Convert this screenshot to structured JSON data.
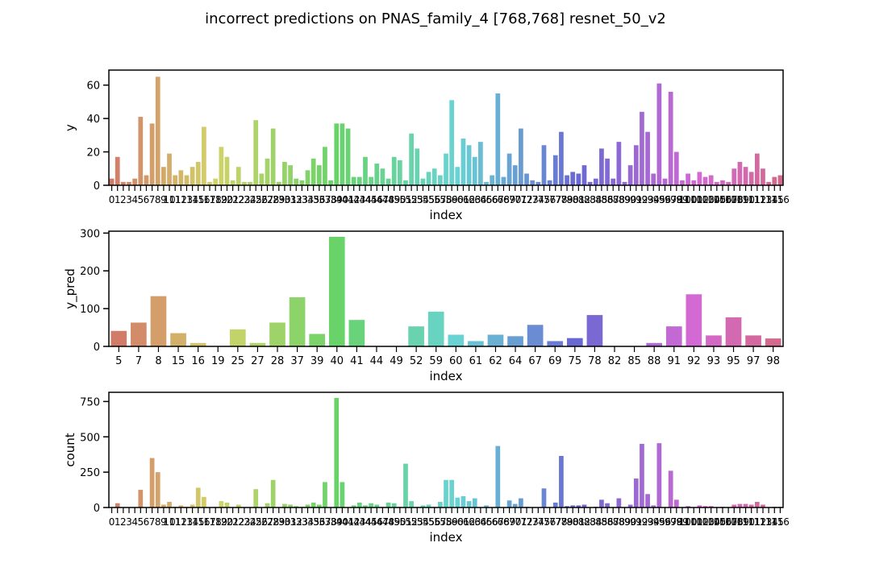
{
  "figure": {
    "title": "incorrect predictions on PNAS_family_4 [768,768] resnet_50_v2"
  },
  "chart_data": [
    {
      "type": "bar",
      "xlabel": "index",
      "ylabel": "y",
      "ylim": [
        0,
        69
      ],
      "yticks": [
        0,
        20,
        40,
        60
      ],
      "x": [
        0,
        1,
        2,
        3,
        4,
        5,
        6,
        7,
        8,
        9,
        10,
        11,
        12,
        13,
        14,
        15,
        16,
        17,
        18,
        19,
        20,
        21,
        22,
        23,
        24,
        25,
        26,
        27,
        28,
        29,
        30,
        31,
        32,
        33,
        34,
        35,
        36,
        37,
        38,
        39,
        40,
        41,
        42,
        43,
        44,
        45,
        46,
        47,
        48,
        49,
        50,
        51,
        52,
        53,
        54,
        55,
        56,
        57,
        58,
        59,
        60,
        61,
        62,
        63,
        64,
        65,
        66,
        67,
        68,
        69,
        70,
        71,
        72,
        73,
        74,
        75,
        76,
        77,
        78,
        79,
        80,
        81,
        82,
        83,
        84,
        85,
        86,
        87,
        88,
        89,
        90,
        91,
        92,
        93,
        94,
        95,
        96,
        97,
        98,
        99,
        100,
        101,
        102,
        103,
        104,
        105,
        106,
        107,
        108,
        109,
        110,
        111,
        112,
        113,
        114,
        115,
        116
      ],
      "values": [
        4,
        17,
        2,
        2,
        4,
        41,
        6,
        37,
        65,
        11,
        19,
        6,
        9,
        6,
        11,
        14,
        35,
        2,
        4,
        23,
        17,
        3,
        11,
        2,
        2,
        39,
        7,
        16,
        34,
        2,
        14,
        12,
        4,
        3,
        9,
        16,
        12,
        23,
        3,
        37,
        37,
        34,
        5,
        5,
        17,
        5,
        13,
        10,
        4,
        17,
        15,
        3,
        31,
        22,
        4,
        8,
        10,
        6,
        19,
        51,
        11,
        28,
        24,
        17,
        26,
        2,
        6,
        55,
        5,
        19,
        12,
        34,
        7,
        3,
        2,
        24,
        3,
        18,
        32,
        6,
        8,
        7,
        12,
        2,
        4,
        22,
        16,
        4,
        26,
        2,
        12,
        24,
        44,
        32,
        7,
        61,
        4,
        56,
        20,
        3,
        7,
        3,
        8,
        5,
        6,
        2,
        3,
        2,
        10,
        14,
        11,
        8,
        19,
        10,
        2,
        5,
        6
      ],
      "tick_labels": [
        "0",
        "1",
        "2",
        "3",
        "4",
        "5",
        "6",
        "7",
        "8",
        "9",
        "10",
        "11",
        "12",
        "13",
        "14",
        "15",
        "16",
        "17",
        "18",
        "19",
        "20",
        "21",
        "22",
        "23",
        "24",
        "25",
        "26",
        "27",
        "28",
        "29",
        "30",
        "31",
        "32",
        "33",
        "34",
        "35",
        "36",
        "37",
        "38",
        "39",
        "40",
        "41",
        "42",
        "43",
        "44",
        "45",
        "46",
        "47",
        "48",
        "49",
        "50",
        "51",
        "52",
        "53",
        "54",
        "55",
        "56",
        "57",
        "58",
        "59",
        "60",
        "61",
        "62",
        "63",
        "64",
        "65",
        "66",
        "67",
        "68",
        "69",
        "70",
        "71",
        "72",
        "73",
        "74",
        "75",
        "76",
        "77",
        "78",
        "79",
        "80",
        "81",
        "82",
        "83",
        "84",
        "85",
        "86",
        "87",
        "88",
        "89",
        "90",
        "91",
        "92",
        "93",
        "94",
        "95",
        "96",
        "97",
        "98",
        "99",
        "100",
        "101",
        "102",
        "103",
        "104",
        "105",
        "106",
        "107",
        "108",
        "109",
        "110",
        "111",
        "112",
        "113",
        "114",
        "115",
        "116"
      ],
      "grid": false,
      "legend": "none"
    },
    {
      "type": "bar",
      "xlabel": "index",
      "ylabel": "y_pred",
      "ylim": [
        0,
        305
      ],
      "yticks": [
        0,
        100,
        200,
        300
      ],
      "categories": [
        "5",
        "7",
        "8",
        "15",
        "16",
        "19",
        "25",
        "27",
        "28",
        "37",
        "39",
        "40",
        "41",
        "44",
        "49",
        "52",
        "59",
        "60",
        "61",
        "62",
        "64",
        "67",
        "69",
        "75",
        "78",
        "82",
        "85",
        "88",
        "91",
        "92",
        "93",
        "95",
        "97",
        "98"
      ],
      "values": [
        41,
        63,
        133,
        35,
        9,
        0,
        45,
        9,
        63,
        130,
        33,
        290,
        70,
        0,
        0,
        53,
        92,
        31,
        14,
        31,
        27,
        57,
        14,
        22,
        83,
        0,
        0,
        9,
        53,
        138,
        29,
        77,
        29,
        21
      ],
      "grid": false,
      "legend": "none"
    },
    {
      "type": "bar",
      "xlabel": "index",
      "ylabel": "count",
      "ylim": [
        0,
        815
      ],
      "yticks": [
        0,
        250,
        500,
        750
      ],
      "x": [
        0,
        1,
        2,
        3,
        4,
        5,
        6,
        7,
        8,
        9,
        10,
        11,
        12,
        13,
        14,
        15,
        16,
        17,
        18,
        19,
        20,
        21,
        22,
        23,
        24,
        25,
        26,
        27,
        28,
        29,
        30,
        31,
        32,
        33,
        34,
        35,
        36,
        37,
        38,
        39,
        40,
        41,
        42,
        43,
        44,
        45,
        46,
        47,
        48,
        49,
        50,
        51,
        52,
        53,
        54,
        55,
        56,
        57,
        58,
        59,
        60,
        61,
        62,
        63,
        64,
        65,
        66,
        67,
        68,
        69,
        70,
        71,
        72,
        73,
        74,
        75,
        76,
        77,
        78,
        79,
        80,
        81,
        82,
        83,
        84,
        85,
        86,
        87,
        88,
        89,
        90,
        91,
        92,
        93,
        94,
        95,
        96,
        97,
        98,
        99,
        100,
        101,
        102,
        103,
        104,
        105,
        106,
        107,
        108,
        109,
        110,
        111,
        112,
        113,
        114,
        115,
        116
      ],
      "values": [
        0,
        30,
        0,
        0,
        0,
        125,
        0,
        350,
        250,
        20,
        40,
        5,
        15,
        5,
        20,
        140,
        75,
        0,
        5,
        45,
        35,
        0,
        20,
        0,
        0,
        130,
        0,
        30,
        195,
        0,
        25,
        20,
        10,
        5,
        20,
        35,
        20,
        180,
        0,
        775,
        180,
        0,
        15,
        35,
        15,
        30,
        20,
        5,
        35,
        30,
        5,
        310,
        45,
        5,
        15,
        20,
        5,
        40,
        195,
        195,
        70,
        80,
        45,
        65,
        0,
        15,
        0,
        435,
        0,
        50,
        25,
        65,
        5,
        0,
        0,
        135,
        0,
        35,
        365,
        10,
        15,
        15,
        20,
        0,
        5,
        55,
        30,
        0,
        65,
        0,
        20,
        205,
        450,
        95,
        15,
        455,
        0,
        260,
        55,
        0,
        10,
        0,
        15,
        10,
        10,
        0,
        5,
        0,
        20,
        25,
        25,
        20,
        40,
        20,
        0,
        5,
        5
      ],
      "tick_labels": [
        "0",
        "1",
        "2",
        "3",
        "4",
        "5",
        "6",
        "7",
        "8",
        "9",
        "10",
        "11",
        "12",
        "13",
        "14",
        "15",
        "16",
        "17",
        "18",
        "19",
        "20",
        "21",
        "22",
        "23",
        "24",
        "25",
        "26",
        "27",
        "28",
        "29",
        "30",
        "31",
        "32",
        "33",
        "34",
        "35",
        "36",
        "37",
        "38",
        "39",
        "40",
        "41",
        "42",
        "43",
        "44",
        "45",
        "46",
        "47",
        "48",
        "49",
        "50",
        "51",
        "52",
        "53",
        "54",
        "55",
        "56",
        "57",
        "58",
        "59",
        "60",
        "61",
        "62",
        "63",
        "64",
        "65",
        "66",
        "67",
        "68",
        "69",
        "70",
        "71",
        "72",
        "73",
        "74",
        "75",
        "76",
        "77",
        "78",
        "79",
        "80",
        "81",
        "82",
        "83",
        "84",
        "85",
        "86",
        "87",
        "88",
        "89",
        "90",
        "91",
        "92",
        "93",
        "94",
        "95",
        "96",
        "97",
        "98",
        "99",
        "100",
        "101",
        "102",
        "103",
        "104",
        "105",
        "106",
        "107",
        "108",
        "109",
        "110",
        "111",
        "112",
        "113",
        "114",
        "115",
        "116"
      ],
      "grid": false,
      "legend": "none"
    }
  ]
}
